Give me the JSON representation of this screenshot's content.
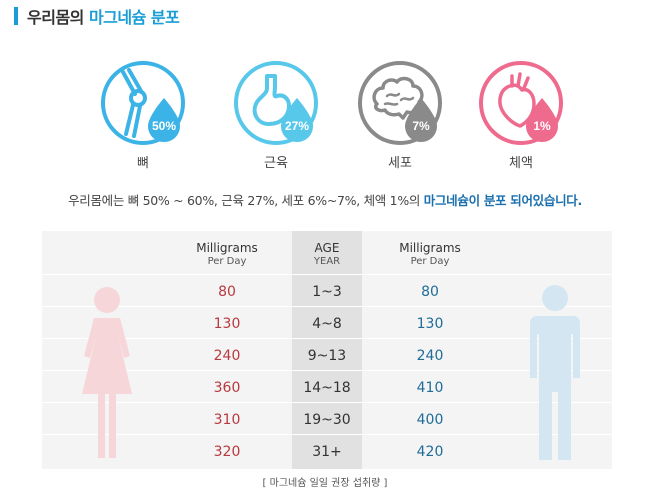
{
  "title": {
    "prefix": "우리몸의 ",
    "highlight": "마그네슘 분포"
  },
  "icons": [
    {
      "name": "bone",
      "label": "뼈",
      "percent": "50%",
      "color": "#3bb3e6"
    },
    {
      "name": "muscle",
      "label": "근육",
      "percent": "27%",
      "color": "#57c7ea"
    },
    {
      "name": "cell",
      "label": "세포",
      "percent": "7%",
      "color": "#8a8a8a"
    },
    {
      "name": "body-fluid",
      "label": "체액",
      "percent": "1%",
      "color": "#ef6b8e"
    }
  ],
  "summary": {
    "text": "우리몸에는 뼈 50% ~ 60%, 근육 27%, 세포 6%~7%, 체액 1%의 ",
    "highlight": "마그네슘이 분포 되어있습니다."
  },
  "table": {
    "female_header": {
      "line1": "Milligrams",
      "line2": "Per Day"
    },
    "age_header": {
      "line1": "AGE",
      "line2": "YEAR"
    },
    "male_header": {
      "line1": "Milligrams",
      "line2": "Per Day"
    },
    "rows": [
      {
        "female": "80",
        "age": "1~3",
        "male": "80"
      },
      {
        "female": "130",
        "age": "4~8",
        "male": "130"
      },
      {
        "female": "240",
        "age": "9~13",
        "male": "240"
      },
      {
        "female": "360",
        "age": "14~18",
        "male": "410"
      },
      {
        "female": "310",
        "age": "19~30",
        "male": "400"
      },
      {
        "female": "320",
        "age": "31+",
        "male": "420"
      }
    ]
  },
  "footnote": "[ 마그네슘 일일 권장 섭취량 ]"
}
